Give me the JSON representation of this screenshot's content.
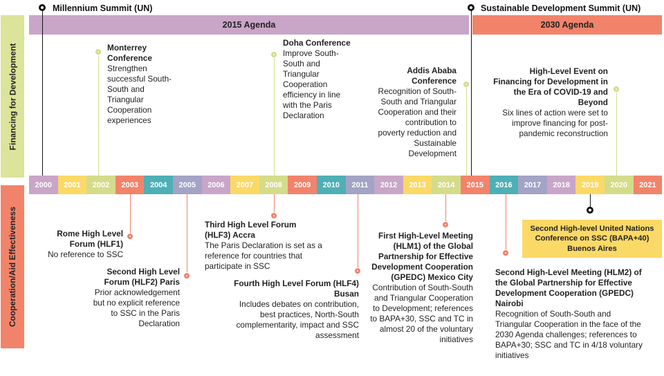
{
  "side_labels": {
    "financing": "Financing for Development",
    "cooperation": "Cooperation/Aid Effectiveness"
  },
  "summits": {
    "millennium": "Millennium Summit (UN)",
    "sustainable": "Sustainable Development Summit (UN)"
  },
  "agendas": {
    "a2015": "2015 Agenda",
    "a2030": "2030 Agenda"
  },
  "colors": {
    "agenda_2015": "#c9a5c8",
    "agenda_2030": "#f2836b",
    "financing_side": "#dbe49a",
    "cooperation_side": "#f2836b",
    "financing_dot": "#d4dc8a",
    "cooperation_dot": "#f2836b",
    "highlight": "#fbd966"
  },
  "years": [
    {
      "label": "2000",
      "color": "#c9a5c8"
    },
    {
      "label": "2001",
      "color": "#fbd966"
    },
    {
      "label": "2002",
      "color": "#d4dc8a"
    },
    {
      "label": "2003",
      "color": "#f2836b"
    },
    {
      "label": "2004",
      "color": "#4eafb6"
    },
    {
      "label": "2005",
      "color": "#a3a3c6"
    },
    {
      "label": "2006",
      "color": "#c9a5c8"
    },
    {
      "label": "2007",
      "color": "#fbd966"
    },
    {
      "label": "2008",
      "color": "#d4dc8a"
    },
    {
      "label": "2009",
      "color": "#f2836b"
    },
    {
      "label": "2010",
      "color": "#4eafb6"
    },
    {
      "label": "2011",
      "color": "#a3a3c6"
    },
    {
      "label": "2012",
      "color": "#c9a5c8"
    },
    {
      "label": "2013",
      "color": "#fbd966"
    },
    {
      "label": "2014",
      "color": "#d4dc8a"
    },
    {
      "label": "2015",
      "color": "#f2836b"
    },
    {
      "label": "2016",
      "color": "#4eafb6"
    },
    {
      "label": "2017",
      "color": "#a3a3c6"
    },
    {
      "label": "2018",
      "color": "#c9a5c8"
    },
    {
      "label": "2019",
      "color": "#fbd966"
    },
    {
      "label": "2020",
      "color": "#d4dc8a"
    },
    {
      "label": "2021",
      "color": "#f2836b"
    }
  ],
  "financing_events": {
    "monterrey": {
      "title": "Monterrey Conference",
      "body": "Strengthen successful South-South and Triangular Cooperation experiences"
    },
    "doha": {
      "title": "Doha Conference",
      "body": "Improve South-South and Triangular Cooperation efficiency in line with the Paris Declaration"
    },
    "addis": {
      "title": "Addis Ababa Conference",
      "body": "Recognition of South-South and Triangular Cooperation and their contribution to poverty reduction and Sustainable Development"
    },
    "covid": {
      "title": "High-Level Event on Financing for Development in the Era of COVID-19 and Beyond",
      "body": "Six lines of action were set to improve financing for post-pandemic reconstruction"
    }
  },
  "cooperation_events": {
    "rome": {
      "title": "Rome High Level Forum (HLF1)",
      "body": "No reference to SSC"
    },
    "paris": {
      "title": "Second High Level Forum (HLF2) Paris",
      "body": "Prior acknowledgement but no explicit reference to SSC in the Paris Declaration"
    },
    "accra": {
      "title": "Third High Level Forum (HLF3) Accra",
      "body": "The Paris Declaration is set as a reference for countries that participate in SSC"
    },
    "busan": {
      "title": "Fourth High Level Forum (HLF4) Busan",
      "body": "Includes debates on contribution, best practices, North-South complementarity, impact and SSC assessment"
    },
    "mexico": {
      "title": "First High-Level Meeting (HLM1) of the Global Partnership for Effective Development Cooperation (GPEDC) Mexico City",
      "body": "Contribution of South-South and Triangular Cooperation to Development; references to BAPA+30, SSC and TC in almost 20 of the voluntary initiatives"
    },
    "nairobi": {
      "title": "Second High-Level Meeting (HLM2) of the Global Partnership for Effective Development Cooperation (GPEDC) Nairobi",
      "body": "Recognition of South-South and Triangular Cooperation in the face of the 2030 Agenda challenges; references to BAPA+30; SSC and TC in 4/18 voluntary initiatives"
    },
    "bapa40": {
      "title": "Second High-level United Nations Conference on SSC (BAPA+40) Buenos Aires"
    }
  }
}
